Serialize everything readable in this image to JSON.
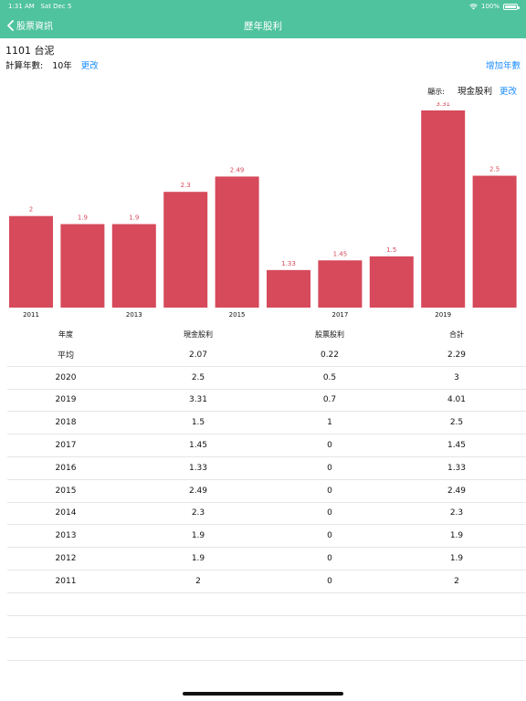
{
  "status": {
    "time": "1:31 AM",
    "date": "Sat Dec 5",
    "battery": "100%"
  },
  "nav": {
    "back_label": "股票資訊",
    "title": "歷年股利"
  },
  "stock": {
    "title": "1101 台泥",
    "years_label": "計算年數:",
    "years_value": "10年",
    "change_label": "更改",
    "add_year_label": "增加年數"
  },
  "display": {
    "label": "顯示:",
    "value": "現金股利",
    "change_label": "更改"
  },
  "colors": {
    "header": "#4fc39d",
    "bar": "#d64a5b",
    "link": "#1a8cff"
  },
  "chart_data": {
    "type": "bar",
    "categories": [
      "2011",
      "2012",
      "2013",
      "2014",
      "2015",
      "2016",
      "2017",
      "2018",
      "2019",
      "2020"
    ],
    "tick_labels": [
      "2011",
      "",
      "2013",
      "",
      "2015",
      "",
      "2017",
      "",
      "2019",
      ""
    ],
    "values": [
      2,
      1.9,
      1.9,
      2.3,
      2.49,
      1.33,
      1.45,
      1.5,
      3.31,
      2.5
    ],
    "value_labels": [
      "2",
      "1.9",
      "1.9",
      "2.3",
      "2.49",
      "1.33",
      "1.45",
      "1.5",
      "3.31",
      "2.5"
    ],
    "ylim": [
      1,
      3.31
    ],
    "grid": false
  },
  "table": {
    "headers": [
      "年度",
      "現金股利",
      "股票股利",
      "合計"
    ],
    "rows": [
      [
        "平均",
        "2.07",
        "0.22",
        "2.29"
      ],
      [
        "2020",
        "2.5",
        "0.5",
        "3"
      ],
      [
        "2019",
        "3.31",
        "0.7",
        "4.01"
      ],
      [
        "2018",
        "1.5",
        "1",
        "2.5"
      ],
      [
        "2017",
        "1.45",
        "0",
        "1.45"
      ],
      [
        "2016",
        "1.33",
        "0",
        "1.33"
      ],
      [
        "2015",
        "2.49",
        "0",
        "2.49"
      ],
      [
        "2014",
        "2.3",
        "0",
        "2.3"
      ],
      [
        "2013",
        "1.9",
        "0",
        "1.9"
      ],
      [
        "2012",
        "1.9",
        "0",
        "1.9"
      ],
      [
        "2011",
        "2",
        "0",
        "2"
      ]
    ],
    "empty_rows": 3
  }
}
